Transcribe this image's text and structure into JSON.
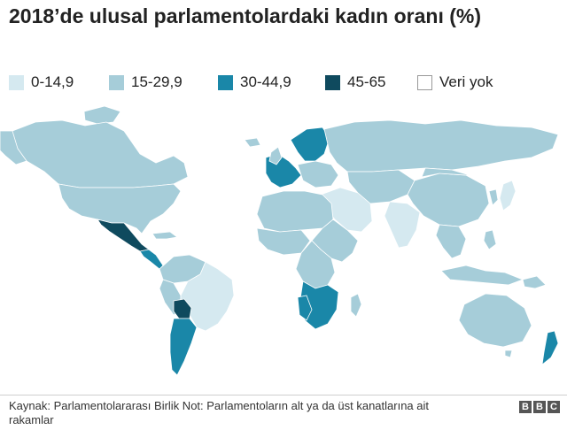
{
  "title": "2018’de ulusal parlamentolardaki kadın oranı (%)",
  "legend": [
    {
      "label": "0-14,9",
      "color": "#d5e9f0"
    },
    {
      "label": "15-29,9",
      "color": "#a6cdd9"
    },
    {
      "label": "30-44,9",
      "color": "#1a87a8"
    },
    {
      "label": "45-65",
      "color": "#0f4a5e"
    },
    {
      "label": "Veri yok",
      "color": "#ffffff"
    }
  ],
  "source": "Kaynak: Parlamentolararası Birlik Not: Parlamentoların alt ya da üst kanatlarına ait rakamlar",
  "logo": [
    "B",
    "B",
    "C"
  ],
  "map": {
    "regions": [
      {
        "name": "greenland",
        "category": 4
      },
      {
        "name": "canada",
        "category": 1
      },
      {
        "name": "usa",
        "category": 1
      },
      {
        "name": "mexico",
        "category": 3
      },
      {
        "name": "central-america",
        "category": 2
      },
      {
        "name": "brazil",
        "category": 0
      },
      {
        "name": "argentina",
        "category": 2
      },
      {
        "name": "bolivia",
        "category": 3
      },
      {
        "name": "russia",
        "category": 1
      },
      {
        "name": "scandinavia",
        "category": 2
      },
      {
        "name": "western-europe",
        "category": 2
      },
      {
        "name": "north-africa",
        "category": 1
      },
      {
        "name": "sahel",
        "category": 1
      },
      {
        "name": "central-africa",
        "category": 1
      },
      {
        "name": "southern-africa",
        "category": 2
      },
      {
        "name": "namibia",
        "category": 2
      },
      {
        "name": "middle-east",
        "category": 0
      },
      {
        "name": "india",
        "category": 0
      },
      {
        "name": "china",
        "category": 1
      },
      {
        "name": "southeast-asia",
        "category": 1
      },
      {
        "name": "japan",
        "category": 0
      },
      {
        "name": "indonesia",
        "category": 1
      },
      {
        "name": "australia",
        "category": 1
      },
      {
        "name": "new-zealand",
        "category": 2
      },
      {
        "name": "madagascar",
        "category": 1
      }
    ]
  }
}
